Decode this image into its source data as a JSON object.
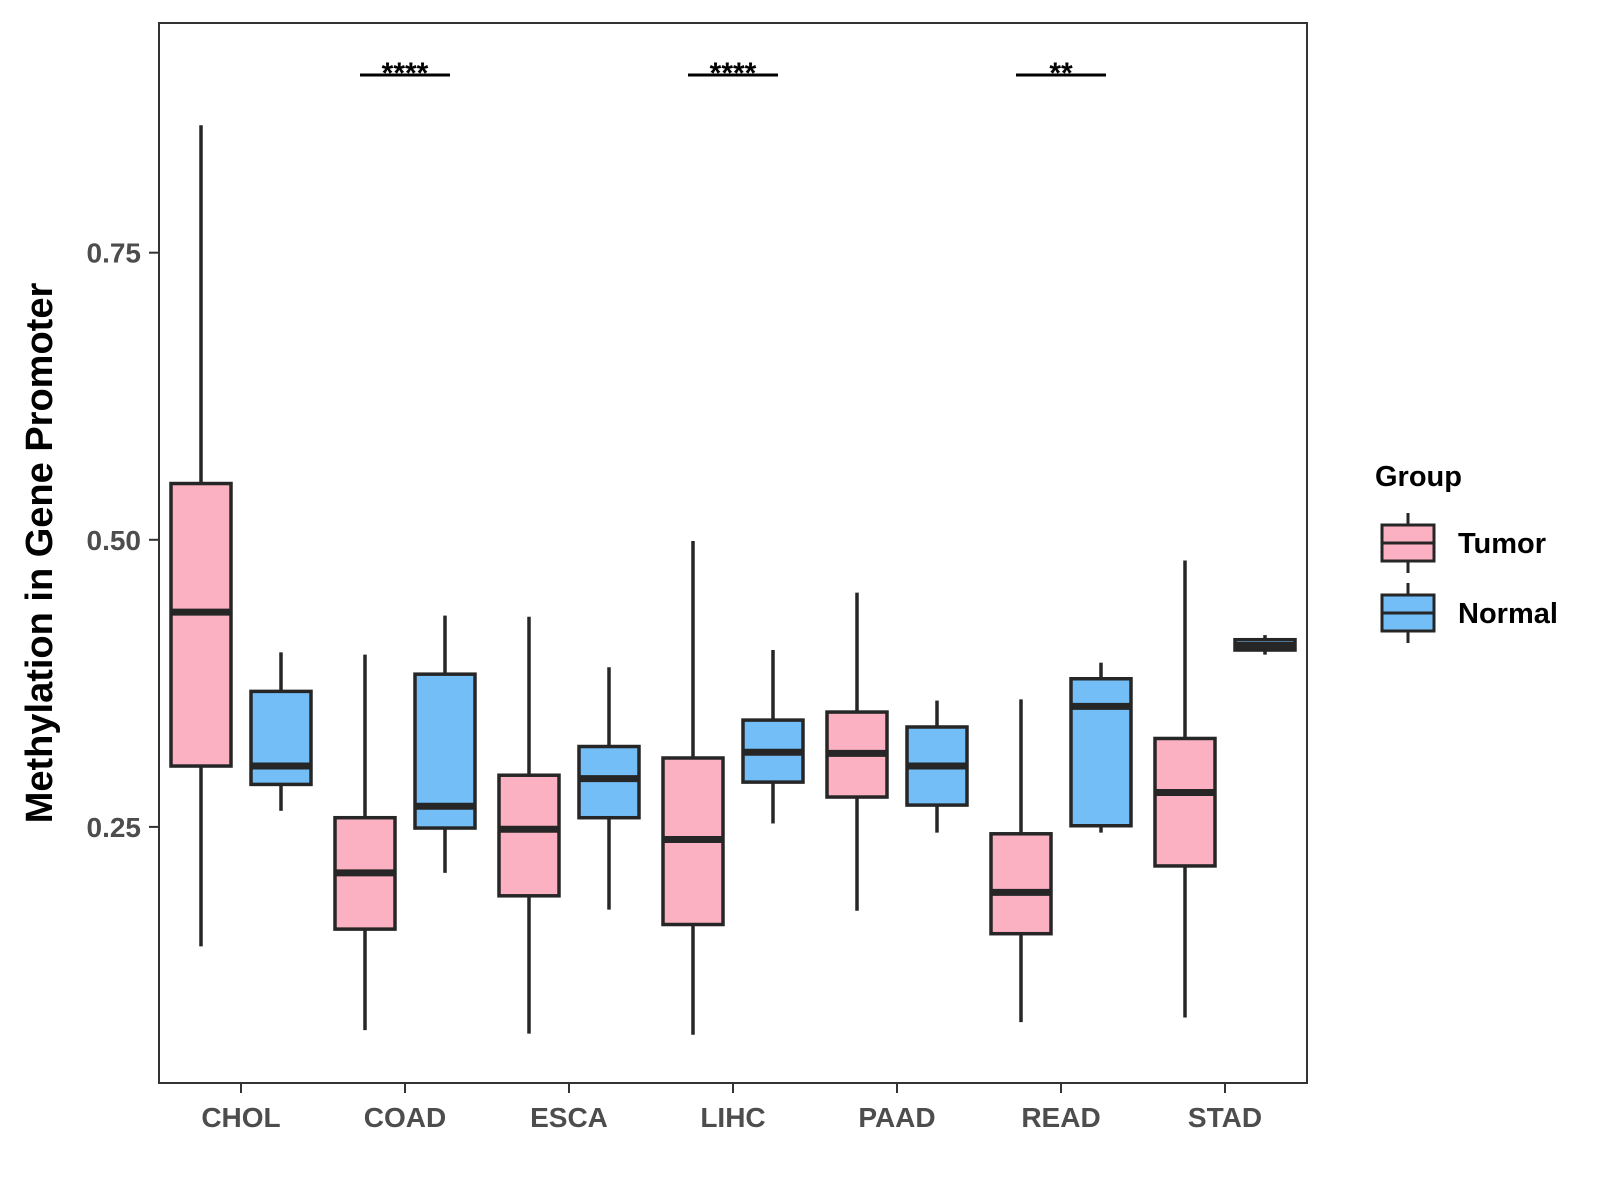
{
  "chart_data": {
    "type": "boxplot",
    "title": "",
    "xlabel": "",
    "ylabel": "Methylation in Gene Promoter",
    "ylim": [
      0.027,
      0.95
    ],
    "yticks": [
      0.25,
      0.5,
      0.75
    ],
    "ytick_labels": [
      "0.25",
      "0.50",
      "0.75"
    ],
    "categories": [
      "CHOL",
      "COAD",
      "ESCA",
      "LIHC",
      "PAAD",
      "READ",
      "STAD"
    ],
    "legend": {
      "title": "Group",
      "position": "right",
      "entries": [
        {
          "label": "Tumor",
          "color": "#fcb1c3"
        },
        {
          "label": "Normal",
          "color": "#74bef8"
        }
      ]
    },
    "series": [
      {
        "name": "Tumor",
        "color": "#fcb1c3",
        "boxes": [
          {
            "category": "CHOL",
            "min": 0.146,
            "q1": 0.303,
            "median": 0.437,
            "q3": 0.549,
            "max": 0.861
          },
          {
            "category": "COAD",
            "min": 0.073,
            "q1": 0.161,
            "median": 0.21,
            "q3": 0.258,
            "max": 0.4
          },
          {
            "category": "ESCA",
            "min": 0.07,
            "q1": 0.19,
            "median": 0.248,
            "q3": 0.295,
            "max": 0.433
          },
          {
            "category": "LIHC",
            "min": 0.069,
            "q1": 0.165,
            "median": 0.239,
            "q3": 0.31,
            "max": 0.499
          },
          {
            "category": "PAAD",
            "min": 0.177,
            "q1": 0.276,
            "median": 0.314,
            "q3": 0.35,
            "max": 0.454
          },
          {
            "category": "READ",
            "min": 0.08,
            "q1": 0.157,
            "median": 0.193,
            "q3": 0.244,
            "max": 0.361
          },
          {
            "category": "STAD",
            "min": 0.084,
            "q1": 0.216,
            "median": 0.28,
            "q3": 0.327,
            "max": 0.482
          }
        ]
      },
      {
        "name": "Normal",
        "color": "#74bef8",
        "boxes": [
          {
            "category": "CHOL",
            "min": 0.264,
            "q1": 0.287,
            "median": 0.303,
            "q3": 0.368,
            "max": 0.402
          },
          {
            "category": "COAD",
            "min": 0.21,
            "q1": 0.249,
            "median": 0.268,
            "q3": 0.383,
            "max": 0.434
          },
          {
            "category": "ESCA",
            "min": 0.178,
            "q1": 0.258,
            "median": 0.292,
            "q3": 0.32,
            "max": 0.389
          },
          {
            "category": "LIHC",
            "min": 0.253,
            "q1": 0.289,
            "median": 0.315,
            "q3": 0.343,
            "max": 0.404
          },
          {
            "category": "PAAD",
            "min": 0.245,
            "q1": 0.269,
            "median": 0.303,
            "q3": 0.337,
            "max": 0.36
          },
          {
            "category": "READ",
            "min": 0.245,
            "q1": 0.251,
            "median": 0.355,
            "q3": 0.379,
            "max": 0.393
          },
          {
            "category": "STAD",
            "min": 0.4,
            "q1": 0.404,
            "median": 0.408,
            "q3": 0.413,
            "max": 0.417
          }
        ]
      }
    ],
    "annotations": [
      {
        "category": "COAD",
        "label": "****"
      },
      {
        "category": "LIHC",
        "label": "****"
      },
      {
        "category": "READ",
        "label": "**"
      }
    ]
  }
}
